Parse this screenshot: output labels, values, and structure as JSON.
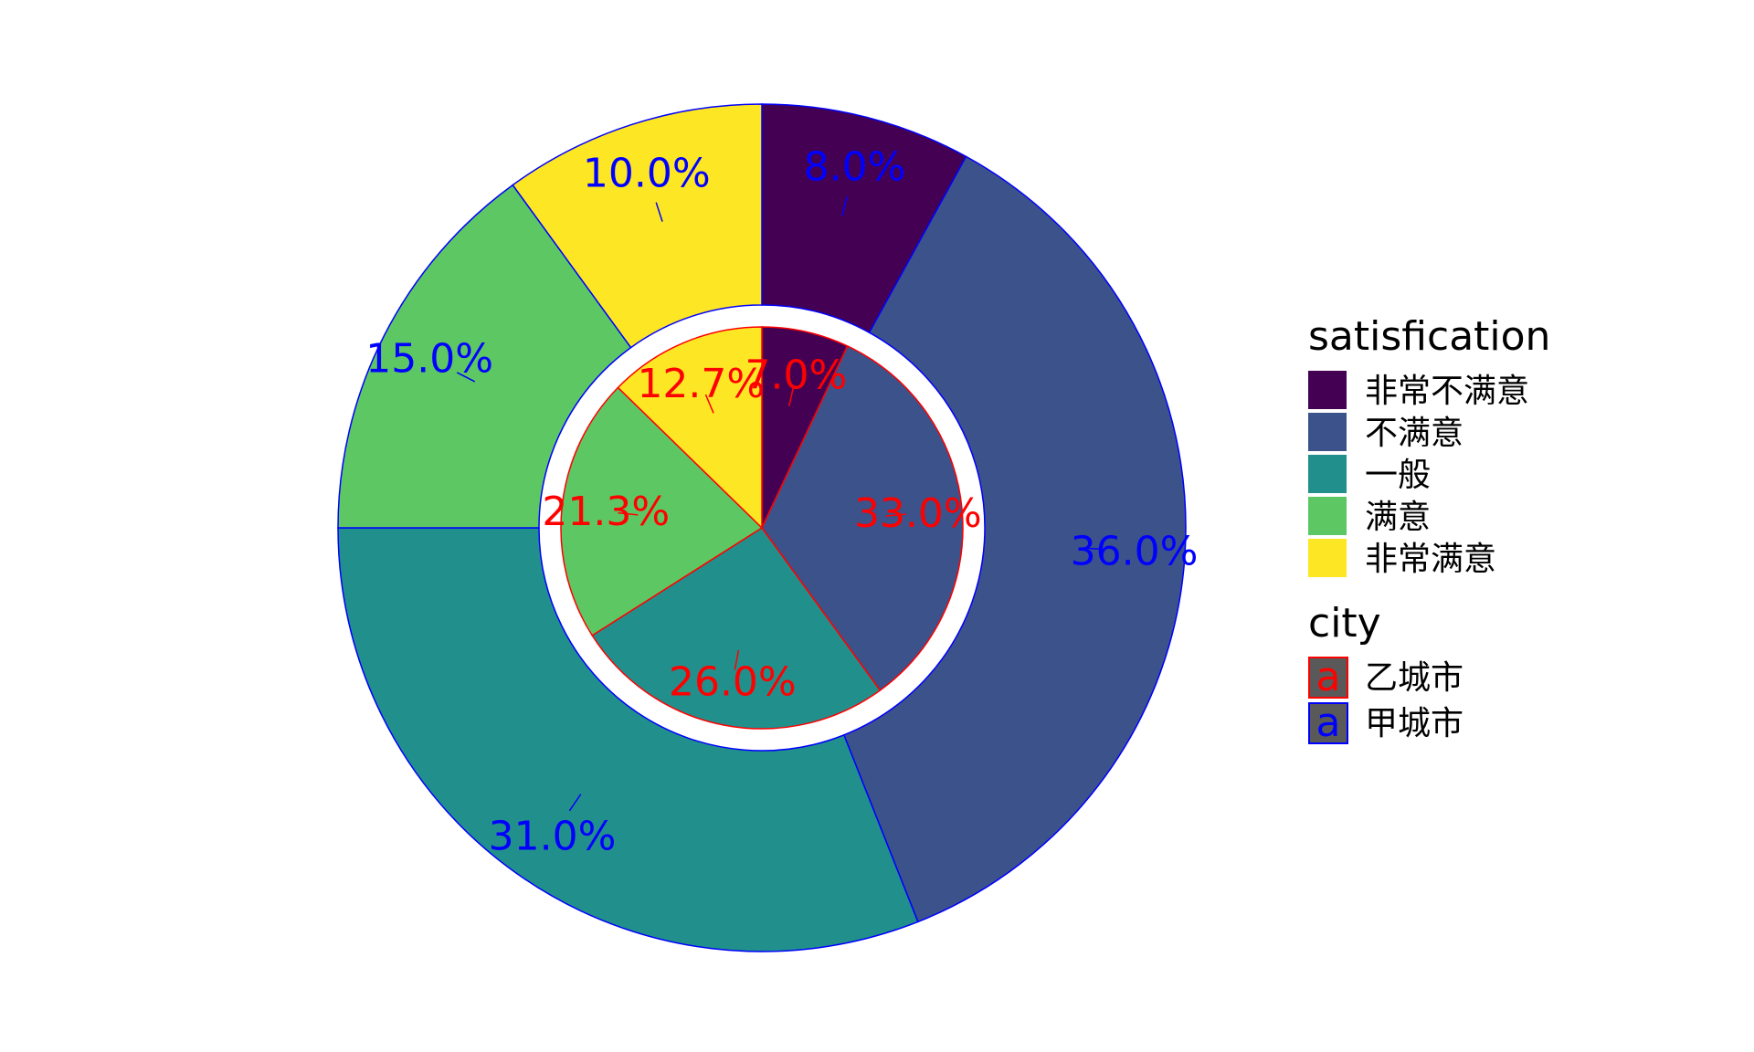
{
  "chart_data": {
    "type": "pie",
    "title": "",
    "categories": [
      "非常不满意",
      "不满意",
      "一般",
      "满意",
      "非常满意"
    ],
    "colors": {
      "非常不满意": "#440154",
      "不满意": "#3B528B",
      "一般": "#21908C",
      "满意": "#5DC863",
      "非常满意": "#FDE725"
    },
    "series": [
      {
        "name": "乙城市",
        "ring": "inner",
        "outline_color": "#FF0000",
        "label_color": "#FF0000",
        "values": [
          7.0,
          33.0,
          26.0,
          21.3,
          12.7
        ],
        "labels": [
          "7.0%",
          "33.0%",
          "26.0%",
          "21.3%",
          "12.7%"
        ]
      },
      {
        "name": "甲城市",
        "ring": "outer",
        "outline_color": "#0000FF",
        "label_color": "#0000FF",
        "values": [
          8.0,
          36.0,
          31.0,
          15.0,
          10.0
        ],
        "labels": [
          "8.0%",
          "36.0%",
          "31.0%",
          "15.0%",
          "10.0%"
        ]
      }
    ],
    "legend": {
      "placement": "right",
      "fill_title": "satisfication",
      "color_title": "city",
      "key_letter": "a",
      "key_fill": "#595959"
    }
  }
}
